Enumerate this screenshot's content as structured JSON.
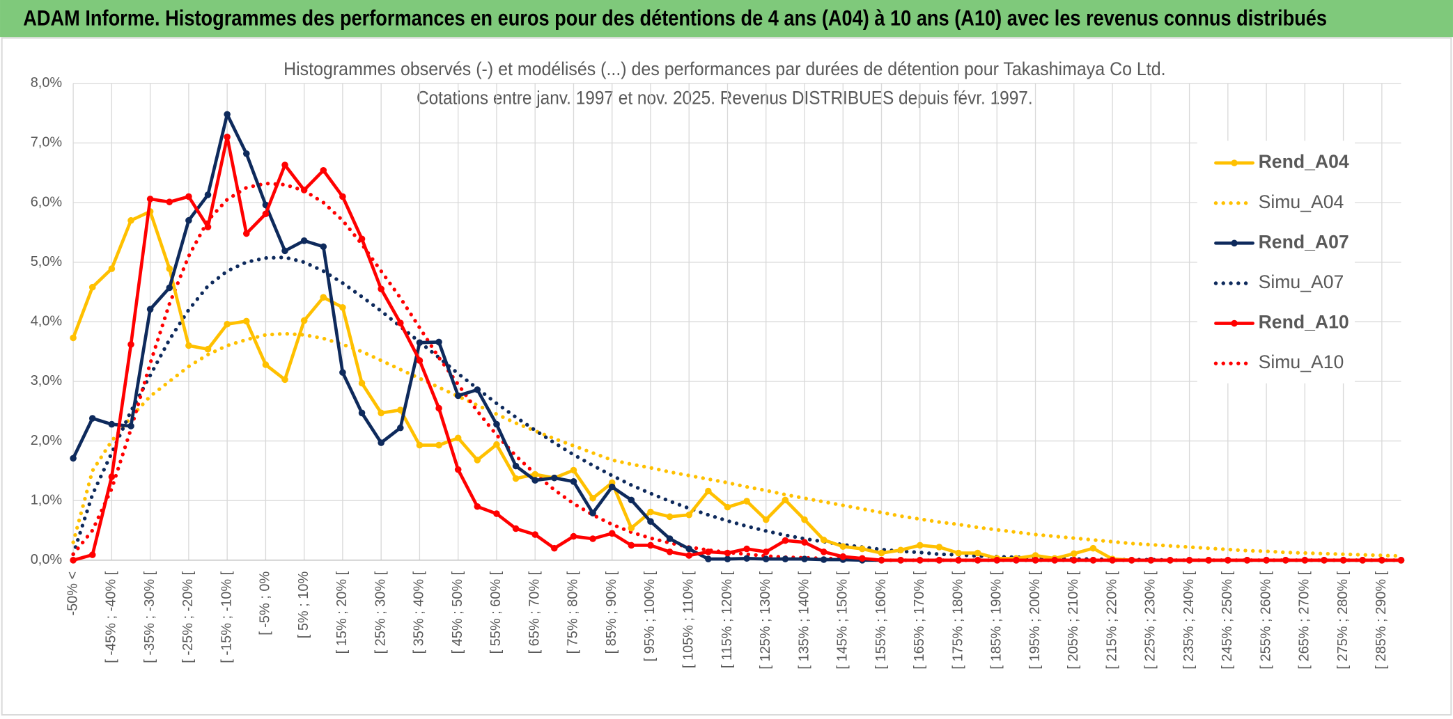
{
  "header": {
    "title": "ADAM Informe. Histogrammes des performances en euros pour des détentions de 4 ans (A04) à 10 ans (A10) avec les revenus connus distribués"
  },
  "chart_data": {
    "type": "line",
    "title": "Histogrammes observés (-) et modélisés (...) des performances par durées de détention pour Takashimaya Co Ltd.",
    "subtitle": "Cotations entre janv. 1997 et nov. 2025. Revenus DISTRIBUES depuis févr. 1997.",
    "categories": [
      "-50% <",
      null,
      "[ -45% ; -40% [",
      null,
      "[ -35% ; -30% [",
      null,
      "[ -25% ; -20% [",
      null,
      "[ -15% ; -10% [",
      null,
      "[ -5% ; 0%",
      null,
      "[ 5% ; 10%",
      null,
      "[ 15% ; 20% [",
      null,
      "[ 25% ; 30% [",
      null,
      "[ 35% ; 40% [",
      null,
      "[ 45% ; 50% [",
      null,
      "[ 55% ; 60% [",
      null,
      "[ 65% ; 70% [",
      null,
      "[ 75% ; 80% [",
      null,
      "[ 85% ; 90% [",
      null,
      "[ 95% ; 100% [",
      null,
      "[ 105% ; 110% [",
      null,
      "[ 115% ; 120% [",
      null,
      "[ 125% ; 130% [",
      null,
      "[ 135% ; 140% [",
      null,
      "[ 145% ; 150% [",
      null,
      "[ 155% ; 160% [",
      null,
      "[ 165% ; 170% [",
      null,
      "[ 175% ; 180% [",
      null,
      "[ 185% ; 190% [",
      null,
      "[ 195% ; 200% [",
      null,
      "[ 205% ; 210% [",
      null,
      "[ 215% ; 220% [",
      null,
      "[ 225% ; 230% [",
      null,
      "[ 235% ; 240% [",
      null,
      "[ 245% ; 250% [",
      null,
      "[ 255% ; 260% [",
      null,
      "[ 265% ; 270% [",
      null,
      "[ 275% ; 280% [",
      null,
      "[ 285% ; 290% [",
      null
    ],
    "ylim": [
      0,
      8
    ],
    "yticks": [
      {
        "value": 0,
        "label": "0,0%"
      },
      {
        "value": 1,
        "label": "1,0%"
      },
      {
        "value": 2,
        "label": "2,0%"
      },
      {
        "value": 3,
        "label": "3,0%"
      },
      {
        "value": 4,
        "label": "4,0%"
      },
      {
        "value": 5,
        "label": "5,0%"
      },
      {
        "value": 6,
        "label": "6,0%"
      },
      {
        "value": 7,
        "label": "7,0%"
      },
      {
        "value": 8,
        "label": "8,0%"
      }
    ],
    "grid": true,
    "legend": "right",
    "series": [
      {
        "name": "Rend_A04",
        "color": "#ffc000",
        "dash": "solid",
        "markers": true,
        "values": [
          3.73,
          4.58,
          4.89,
          5.7,
          5.85,
          4.89,
          3.6,
          3.54,
          3.96,
          4.01,
          3.28,
          3.03,
          4.02,
          4.41,
          4.24,
          2.97,
          2.47,
          2.52,
          1.93,
          1.93,
          2.05,
          1.68,
          1.94,
          1.37,
          1.44,
          1.38,
          1.51,
          1.04,
          1.3,
          0.54,
          0.81,
          0.73,
          0.76,
          1.16,
          0.89,
          0.99,
          0.68,
          1.01,
          0.68,
          0.34,
          0.23,
          0.19,
          0.12,
          0.17,
          0.25,
          0.22,
          0.12,
          0.12,
          0.03,
          0.03,
          0.08,
          0.03,
          0.11,
          0.2,
          0.02,
          0,
          0,
          0,
          0,
          0,
          0,
          0,
          0,
          0,
          0,
          0,
          0,
          0,
          0,
          0
        ]
      },
      {
        "name": "Simu_A04",
        "color": "#ffc000",
        "dash": "dotted",
        "markers": false,
        "values": [
          0.3,
          1.5,
          2.0,
          2.4,
          2.75,
          3.0,
          3.25,
          3.45,
          3.6,
          3.7,
          3.78,
          3.8,
          3.78,
          3.72,
          3.62,
          3.5,
          3.35,
          3.2,
          3.05,
          2.9,
          2.75,
          2.6,
          2.45,
          2.3,
          2.17,
          2.04,
          1.92,
          1.8,
          1.68,
          1.61,
          1.55,
          1.48,
          1.42,
          1.36,
          1.3,
          1.23,
          1.17,
          1.1,
          1.04,
          0.98,
          0.92,
          0.86,
          0.8,
          0.74,
          0.69,
          0.64,
          0.6,
          0.55,
          0.51,
          0.47,
          0.43,
          0.4,
          0.37,
          0.34,
          0.31,
          0.28,
          0.26,
          0.24,
          0.22,
          0.2,
          0.18,
          0.16,
          0.15,
          0.13,
          0.12,
          0.11,
          0.1,
          0.09,
          0.08,
          0.07
        ]
      },
      {
        "name": "Rend_A07",
        "color": "#0e2a5c",
        "dash": "solid",
        "markers": true,
        "values": [
          1.71,
          2.38,
          2.28,
          2.25,
          4.21,
          4.57,
          5.7,
          6.13,
          7.48,
          6.82,
          5.96,
          5.19,
          5.36,
          5.26,
          3.15,
          2.47,
          1.97,
          2.22,
          3.65,
          3.66,
          2.76,
          2.86,
          2.28,
          1.58,
          1.34,
          1.38,
          1.32,
          0.79,
          1.23,
          1.01,
          0.65,
          0.36,
          0.19,
          0.02,
          0.02,
          0.03,
          0.02,
          0.02,
          0.02,
          0.01,
          0.01,
          0,
          0,
          0,
          0,
          0,
          0,
          0,
          0,
          0,
          0,
          0,
          0,
          0,
          0,
          0,
          0,
          0,
          0,
          0,
          0,
          0,
          0,
          0,
          0,
          0,
          0,
          0,
          0,
          0
        ]
      },
      {
        "name": "Simu_A07",
        "color": "#0e2a5c",
        "dash": "dotted",
        "markers": false,
        "values": [
          0.1,
          1.1,
          1.8,
          2.5,
          3.1,
          3.7,
          4.2,
          4.6,
          4.85,
          5.0,
          5.07,
          5.08,
          5.0,
          4.85,
          4.65,
          4.42,
          4.18,
          3.92,
          3.66,
          3.4,
          3.13,
          2.88,
          2.63,
          2.4,
          2.18,
          1.97,
          1.77,
          1.59,
          1.42,
          1.26,
          1.12,
          0.99,
          0.87,
          0.76,
          0.66,
          0.57,
          0.49,
          0.42,
          0.36,
          0.31,
          0.26,
          0.22,
          0.18,
          0.15,
          0.13,
          0.1,
          0.09,
          0.07,
          0.06,
          0.05,
          0.04,
          0.03,
          0.02,
          0.02,
          0.01,
          0.01,
          0.01,
          0,
          0,
          0,
          0,
          0,
          0,
          0,
          0,
          0,
          0,
          0,
          0,
          0
        ]
      },
      {
        "name": "Rend_A10",
        "color": "#ff0000",
        "dash": "solid",
        "markers": true,
        "values": [
          0,
          0.09,
          1.4,
          3.62,
          6.06,
          6.01,
          6.1,
          5.59,
          7.1,
          5.48,
          5.81,
          6.63,
          6.21,
          6.54,
          6.1,
          5.39,
          4.55,
          3.98,
          3.35,
          2.55,
          1.52,
          0.9,
          0.78,
          0.53,
          0.43,
          0.2,
          0.4,
          0.36,
          0.45,
          0.25,
          0.25,
          0.14,
          0.08,
          0.14,
          0.12,
          0.19,
          0.14,
          0.33,
          0.3,
          0.14,
          0.06,
          0.03,
          0,
          0,
          0,
          0,
          0,
          0,
          0,
          0,
          0,
          0,
          0,
          0,
          0,
          0,
          0,
          0,
          0,
          0,
          0,
          0,
          0,
          0,
          0,
          0,
          0,
          0,
          0,
          0
        ]
      },
      {
        "name": "Simu_A10",
        "color": "#ff0000",
        "dash": "dotted",
        "markers": false,
        "values": [
          0.1,
          0.5,
          1.2,
          2.2,
          3.3,
          4.3,
          5.1,
          5.7,
          6.05,
          6.25,
          6.32,
          6.3,
          6.2,
          6.0,
          5.7,
          5.3,
          4.85,
          4.4,
          3.9,
          3.4,
          2.95,
          2.5,
          2.1,
          1.75,
          1.45,
          1.18,
          0.95,
          0.76,
          0.6,
          0.47,
          0.37,
          0.29,
          0.22,
          0.17,
          0.13,
          0.1,
          0.07,
          0.05,
          0.04,
          0.03,
          0.02,
          0.01,
          0,
          0,
          0,
          0,
          0,
          0,
          0,
          0,
          0,
          0,
          0,
          0,
          0,
          0,
          0,
          0,
          0,
          0,
          0,
          0,
          0,
          0,
          0,
          0,
          0,
          0,
          0,
          0
        ]
      }
    ]
  }
}
